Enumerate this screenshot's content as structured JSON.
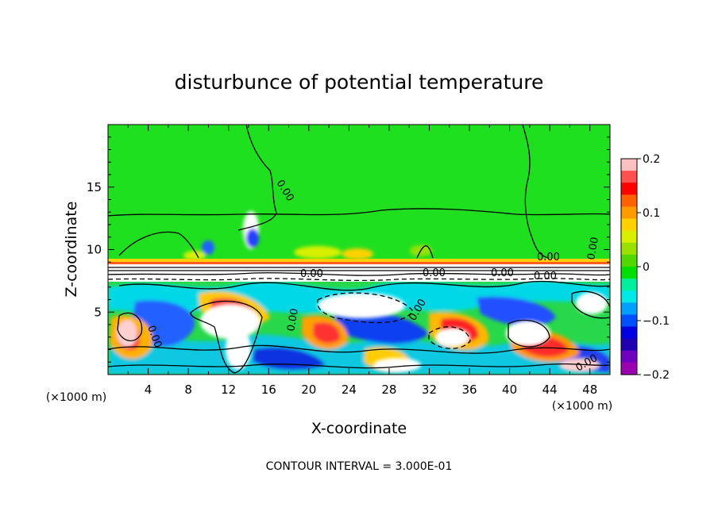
{
  "chart_data": {
    "type": "heatmap",
    "title": "disturbunce of potential temperature",
    "xlabel": "X-coordinate",
    "ylabel": "Z-coordinate",
    "x_unit": "(×1000 m)",
    "y_unit": "(×1000 m)",
    "xlim": [
      0,
      50
    ],
    "ylim": [
      0,
      20
    ],
    "x_ticks": [
      4,
      8,
      12,
      16,
      20,
      24,
      28,
      32,
      36,
      40,
      44,
      48
    ],
    "y_ticks": [
      5,
      10,
      15
    ],
    "colorbar": {
      "range": [
        -0.2,
        0.2
      ],
      "tick_values": [
        0.2,
        0.1,
        0,
        -0.1,
        -0.2
      ],
      "tick_labels": [
        "0.2",
        "0.1",
        "0",
        "−0.1",
        "−0.2"
      ],
      "colors": [
        "#ffc0c0",
        "#ff5050",
        "#ff0000",
        "#ff6000",
        "#ff9a00",
        "#ffd200",
        "#d8f000",
        "#9ae000",
        "#50d800",
        "#00e000",
        "#00f0a0",
        "#00e8e8",
        "#00a0ff",
        "#0050ff",
        "#0000e0",
        "#2000b0",
        "#7000c0",
        "#9b00b0"
      ]
    },
    "contour_labels": [
      "0.00",
      "0.00",
      "0.00",
      "0.00",
      "0.00",
      "0.00",
      "0.00",
      "0.00",
      "0.00",
      "0.00",
      "0.00"
    ],
    "footer": "CONTOUR INTERVAL = 3.000E-01"
  }
}
